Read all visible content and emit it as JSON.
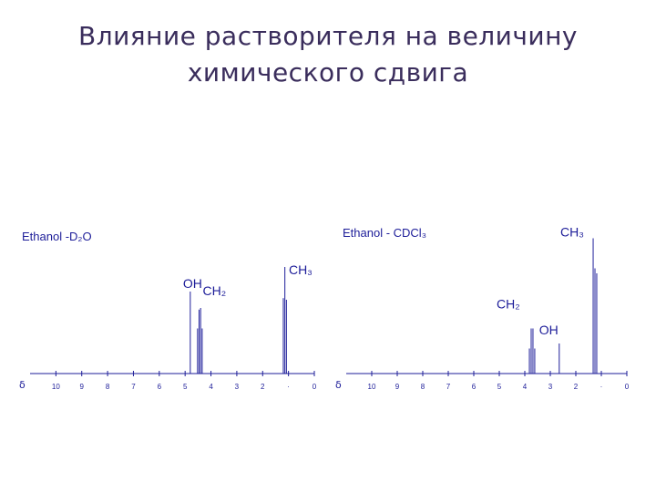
{
  "title": "Влияние растворителя на величину\nхимического сдвига",
  "colors": {
    "title": "#3a2d5c",
    "spectrum": "#1d1d99"
  },
  "spectra": [
    {
      "id": "d2o",
      "name": "Ethanol -D₂O",
      "axis_symbol": "δ",
      "x_range": [
        11,
        0
      ],
      "ticks": [
        {
          "value": 10,
          "label": "10"
        },
        {
          "value": 9,
          "label": "9"
        },
        {
          "value": 8,
          "label": "8"
        },
        {
          "value": 7,
          "label": "7"
        },
        {
          "value": 6,
          "label": "6"
        },
        {
          "value": 5,
          "label": "5"
        },
        {
          "value": 4,
          "label": "4"
        },
        {
          "value": 3,
          "label": "3"
        },
        {
          "value": 2,
          "label": "2"
        },
        {
          "value": 1,
          "label": "·"
        },
        {
          "value": 0,
          "label": "0"
        }
      ],
      "peaks": [
        {
          "shift": 4.8,
          "height": 1.0,
          "label": "OH"
        },
        {
          "shift": 4.52,
          "height": 0.55
        },
        {
          "shift": 4.46,
          "height": 0.78,
          "label": "CH₂"
        },
        {
          "shift": 4.4,
          "height": 0.8
        },
        {
          "shift": 4.34,
          "height": 0.55
        },
        {
          "shift": 1.2,
          "height": 0.92,
          "label": "CH₃"
        },
        {
          "shift": 1.14,
          "height": 1.3
        },
        {
          "shift": 1.08,
          "height": 0.9
        }
      ]
    },
    {
      "id": "cdcl3",
      "name": "Ethanol - CDCl₃",
      "axis_symbol": "δ",
      "x_range": [
        11,
        0
      ],
      "ticks": [
        {
          "value": 10,
          "label": "10"
        },
        {
          "value": 9,
          "label": "9"
        },
        {
          "value": 8,
          "label": "8"
        },
        {
          "value": 7,
          "label": "7"
        },
        {
          "value": 6,
          "label": "6"
        },
        {
          "value": 5,
          "label": "5"
        },
        {
          "value": 4,
          "label": "4"
        },
        {
          "value": 3,
          "label": "3"
        },
        {
          "value": 2,
          "label": "2"
        },
        {
          "value": 1,
          "label": "·"
        },
        {
          "value": 0,
          "label": "0"
        }
      ],
      "peaks": [
        {
          "shift": 3.82,
          "height": 0.25
        },
        {
          "shift": 3.75,
          "height": 0.45,
          "label": "CH₂"
        },
        {
          "shift": 3.68,
          "height": 0.45
        },
        {
          "shift": 3.61,
          "height": 0.25
        },
        {
          "shift": 2.65,
          "height": 0.3,
          "label": "OH"
        },
        {
          "shift": 1.32,
          "height": 1.35,
          "label": "CH₃"
        },
        {
          "shift": 1.25,
          "height": 1.05
        },
        {
          "shift": 1.18,
          "height": 1.0
        }
      ]
    }
  ]
}
